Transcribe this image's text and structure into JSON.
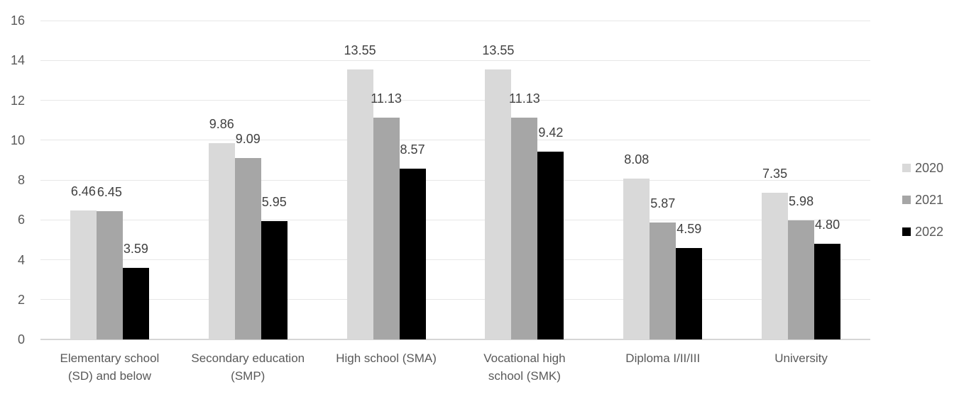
{
  "chart_data": {
    "type": "bar",
    "title": "",
    "xlabel": "",
    "ylabel": "",
    "categories": [
      {
        "label": "Elementary school (SD) and below",
        "lines": [
          "Elementary school",
          "(SD) and below"
        ]
      },
      {
        "label": "Secondary education (SMP)",
        "lines": [
          "Secondary education",
          "(SMP)"
        ]
      },
      {
        "label": "High school (SMA)",
        "lines": [
          "High school (SMA)"
        ]
      },
      {
        "label": "Vocational high school (SMK)",
        "lines": [
          "Vocational high",
          "school (SMK)"
        ]
      },
      {
        "label": "Diploma I/II/III",
        "lines": [
          "Diploma I/II/III"
        ]
      },
      {
        "label": "University",
        "lines": [
          "University"
        ]
      }
    ],
    "series": [
      {
        "name": "2020",
        "color": "#d9d9d9",
        "values": [
          6.46,
          9.86,
          13.55,
          13.55,
          8.08,
          7.35
        ]
      },
      {
        "name": "2021",
        "color": "#a6a6a6",
        "values": [
          6.45,
          9.09,
          11.13,
          11.13,
          5.87,
          5.98
        ]
      },
      {
        "name": "2022",
        "color": "#000000",
        "values": [
          3.59,
          5.95,
          8.57,
          9.42,
          4.59,
          4.8
        ]
      }
    ],
    "y_axis": {
      "min": 0,
      "max": 16,
      "step": 2,
      "ticks": [
        0,
        2,
        4,
        6,
        8,
        10,
        12,
        14,
        16
      ]
    },
    "ylim": [
      0,
      16
    ],
    "grid": true,
    "data_labels": true,
    "label_decimals": 2,
    "legend_position": "right",
    "colors": {
      "axis_text": "#595959",
      "data_label_text": "#404040",
      "gridline": "#e7e7e7",
      "axis_line": "#d6d6d6",
      "background": "#ffffff"
    }
  }
}
